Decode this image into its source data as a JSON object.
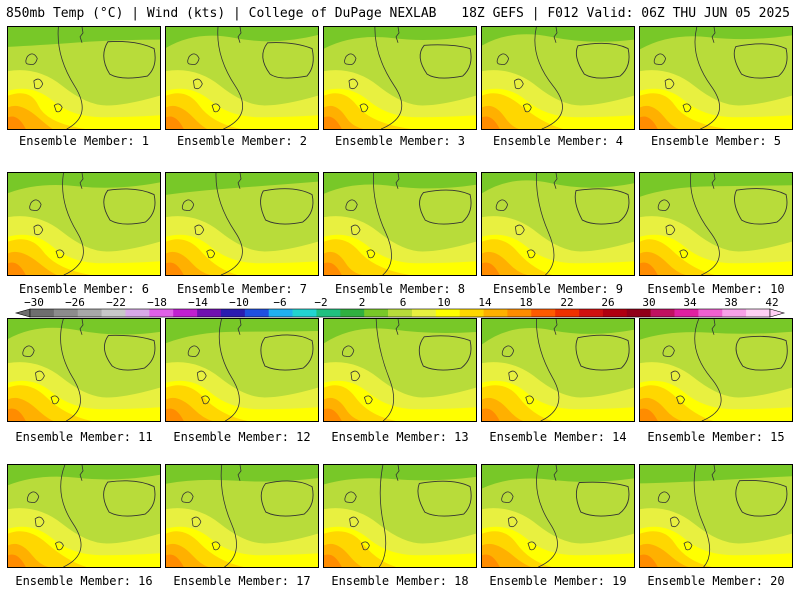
{
  "header": {
    "left": "850mb Temp (°C) | Wind (kts) | College of DuPage NEXLAB",
    "right": "18Z GEFS | F012 Valid: 06Z THU JUN 05 2025"
  },
  "members": [
    "Ensemble Member: 1",
    "Ensemble Member: 2",
    "Ensemble Member: 3",
    "Ensemble Member: 4",
    "Ensemble Member: 5",
    "Ensemble Member: 6",
    "Ensemble Member: 7",
    "Ensemble Member: 8",
    "Ensemble Member: 9",
    "Ensemble Member: 10",
    "Ensemble Member: 11",
    "Ensemble Member: 12",
    "Ensemble Member: 13",
    "Ensemble Member: 14",
    "Ensemble Member: 15",
    "Ensemble Member: 16",
    "Ensemble Member: 17",
    "Ensemble Member: 18",
    "Ensemble Member: 19",
    "Ensemble Member: 20"
  ],
  "colorbar": {
    "labels": [
      "-30",
      "-26",
      "-22",
      "-18",
      "-14",
      "-10",
      "-6",
      "-2",
      "2",
      "6",
      "10",
      "14",
      "18",
      "22",
      "26",
      "30",
      "34",
      "38",
      "42"
    ],
    "colors": [
      "#6e6e6e",
      "#8c8c8c",
      "#a8a8a8",
      "#c8c8c8",
      "#d8a8e8",
      "#e060e8",
      "#c020d0",
      "#7010b0",
      "#2a1cb0",
      "#1f50e0",
      "#20b0f0",
      "#22d4d0",
      "#20c080",
      "#30b040",
      "#78c828",
      "#b8dc3a",
      "#e8f040",
      "#ffff00",
      "#ffd700",
      "#ffb000",
      "#ff8c00",
      "#ff5a00",
      "#f03000",
      "#d01010",
      "#b00010",
      "#900018",
      "#c01060",
      "#e020a0",
      "#f060d0",
      "#f8a0e8",
      "#ffd0f4"
    ]
  }
}
